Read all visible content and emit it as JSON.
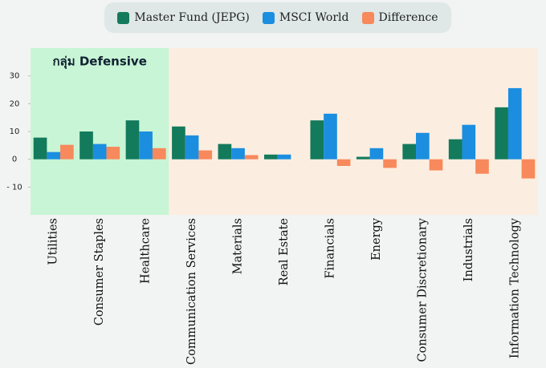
{
  "chart_data": {
    "type": "bar",
    "annotation": "กลุ่ม Defensive",
    "categories": [
      "Utilities",
      "Consumer Staples",
      "Healthcare",
      "Communication Services",
      "Materials",
      "Real Estate",
      "Financials",
      "Energy",
      "Consumer Discretionary",
      "Industrials",
      "Information Technology"
    ],
    "series": [
      {
        "name": "Master Fund (JEPG)",
        "color": "#137a5c",
        "values": [
          7.8,
          10,
          14,
          11.8,
          5.5,
          1.7,
          14,
          0.9,
          5.5,
          7.2,
          18.7
        ]
      },
      {
        "name": "MSCI World",
        "color": "#1b8ee0",
        "values": [
          2.6,
          5.5,
          10,
          8.6,
          4,
          1.7,
          16.4,
          4,
          9.5,
          12.4,
          25.6
        ]
      },
      {
        "name": "Difference",
        "color": "#f7895c",
        "values": [
          5.2,
          4.5,
          4,
          3.2,
          1.5,
          0,
          -2.4,
          -3.1,
          -4,
          -5.2,
          -6.9
        ]
      }
    ],
    "ylim": [
      -20,
      40
    ],
    "yticks": [
      {
        "value": -10,
        "label": "- 10"
      },
      0,
      10,
      20,
      30
    ],
    "grid": false,
    "legend": "top"
  }
}
